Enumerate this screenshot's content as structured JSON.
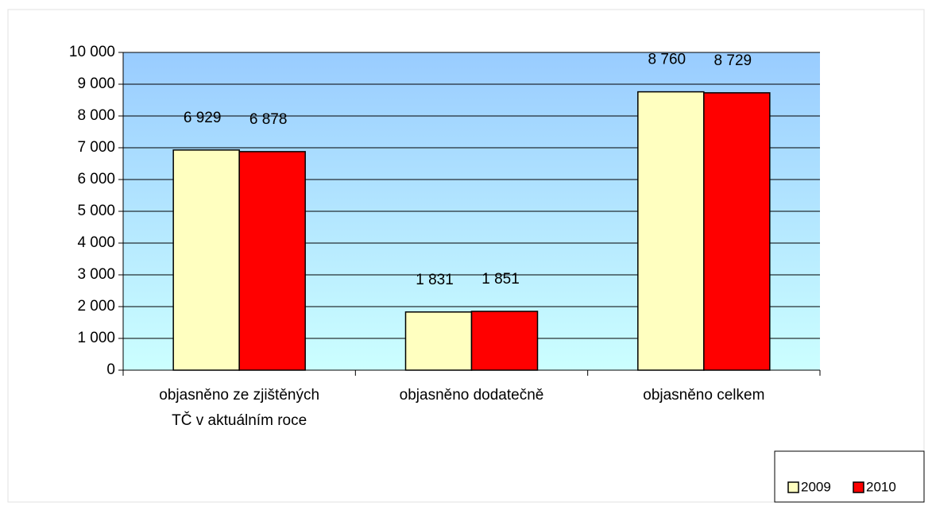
{
  "chart_data": {
    "type": "bar",
    "categories": [
      "objasněno ze zjištěných TČ v aktuálním roce",
      "objasněno dodatečně",
      "objasněno celkem"
    ],
    "series": [
      {
        "name": "2009",
        "color": "#ffffc0",
        "values": [
          6929,
          1831,
          8760
        ],
        "value_labels": [
          "6 929",
          "1 831",
          "8 760"
        ]
      },
      {
        "name": "2010",
        "color": "#ff0000",
        "values": [
          6878,
          1851,
          8729
        ],
        "value_labels": [
          "6 878",
          "1 851",
          "8 729"
        ]
      }
    ],
    "ylim": [
      0,
      10000
    ],
    "yticks": [
      0,
      {
        "value": 1000,
        "label": "1 000"
      },
      {
        "value": 2000,
        "label": "2 000"
      },
      {
        "value": 3000,
        "label": "3 000"
      },
      {
        "value": 4000,
        "label": "4 000"
      },
      {
        "value": 5000,
        "label": "5 000"
      },
      {
        "value": 6000,
        "label": "6 000"
      },
      {
        "value": 7000,
        "label": "7 000"
      },
      {
        "value": 8000,
        "label": "8 000"
      },
      {
        "value": 9000,
        "label": "9 000"
      },
      {
        "value": 10000,
        "label": "10 000"
      }
    ],
    "grid": true,
    "legend": "bottom-right"
  }
}
